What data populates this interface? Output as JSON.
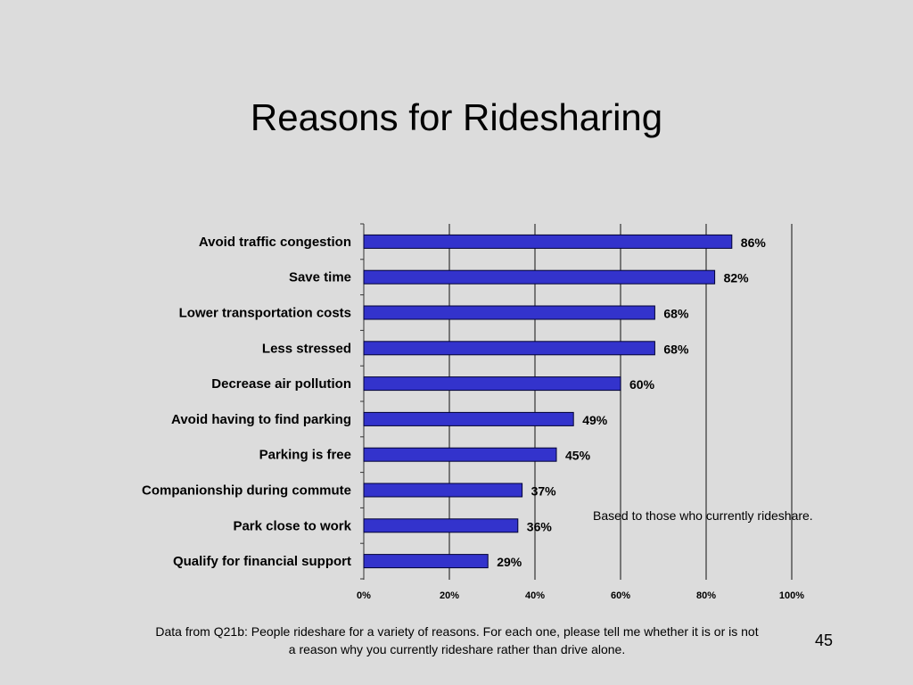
{
  "slide": {
    "title": "Reasons for Ridesharing",
    "note": "Based to those who currently rideshare.",
    "footnote_line1": "Data from Q21b:  People rideshare for a variety of reasons.  For each one, please tell me whether it is or is not",
    "footnote_line2": "a reason why you currently rideshare rather than drive alone.",
    "page_number": "45"
  },
  "chart_data": {
    "type": "bar",
    "orientation": "horizontal",
    "title": "",
    "categories": [
      "Avoid traffic congestion",
      "Save time",
      "Lower transportation costs",
      "Less stressed",
      "Decrease air pollution",
      "Avoid having to find parking",
      "Parking is free",
      "Companionship during commute",
      "Park close to work",
      "Qualify for financial support"
    ],
    "values": [
      86,
      82,
      68,
      68,
      60,
      49,
      45,
      37,
      36,
      29
    ],
    "value_labels": [
      "86%",
      "82%",
      "68%",
      "68%",
      "60%",
      "49%",
      "45%",
      "37%",
      "36%",
      "29%"
    ],
    "xlim": [
      0,
      100
    ],
    "x_ticks": [
      0,
      20,
      40,
      60,
      80,
      100
    ],
    "x_tick_labels": [
      "0%",
      "20%",
      "40%",
      "60%",
      "80%",
      "100%"
    ],
    "grid": true,
    "bar_color": "#3333cc",
    "bar_edge_color": "#000033"
  }
}
